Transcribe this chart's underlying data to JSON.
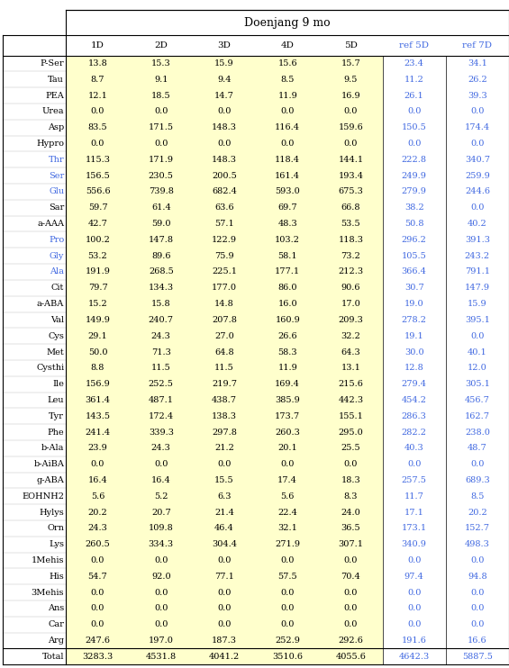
{
  "title": "Doenjang 9 mo",
  "columns": [
    "1D",
    "2D",
    "3D",
    "4D",
    "5D",
    "ref 5D",
    "ref 7D"
  ],
  "rows": [
    "P-Ser",
    "Tau",
    "PEA",
    "Urea",
    "Asp",
    "Hypro",
    "Thr",
    "Ser",
    "Glu",
    "Sar",
    "a-AAA",
    "Pro",
    "Gly",
    "Ala",
    "Cit",
    "a-ABA",
    "Val",
    "Cys",
    "Met",
    "Cysthi",
    "Ile",
    "Leu",
    "Tyr",
    "Phe",
    "b-Ala",
    "b-AiBA",
    "g-ABA",
    "EOHNH2",
    "Hylys",
    "Orn",
    "Lys",
    "1Mehis",
    "His",
    "3Mehis",
    "Ans",
    "Car",
    "Arg",
    "Total"
  ],
  "data": [
    [
      13.8,
      15.3,
      15.9,
      15.6,
      15.7,
      23.4,
      34.1
    ],
    [
      8.7,
      9.1,
      9.4,
      8.5,
      9.5,
      11.2,
      26.2
    ],
    [
      12.1,
      18.5,
      14.7,
      11.9,
      16.9,
      26.1,
      39.3
    ],
    [
      0.0,
      0.0,
      0.0,
      0.0,
      0.0,
      0.0,
      0.0
    ],
    [
      83.5,
      171.5,
      148.3,
      116.4,
      159.6,
      150.5,
      174.4
    ],
    [
      0.0,
      0.0,
      0.0,
      0.0,
      0.0,
      0.0,
      0.0
    ],
    [
      115.3,
      171.9,
      148.3,
      118.4,
      144.1,
      222.8,
      340.7
    ],
    [
      156.5,
      230.5,
      200.5,
      161.4,
      193.4,
      249.9,
      259.9
    ],
    [
      556.6,
      739.8,
      682.4,
      593.0,
      675.3,
      279.9,
      244.6
    ],
    [
      59.7,
      61.4,
      63.6,
      69.7,
      66.8,
      38.2,
      0.0
    ],
    [
      42.7,
      59.0,
      57.1,
      48.3,
      53.5,
      50.8,
      40.2
    ],
    [
      100.2,
      147.8,
      122.9,
      103.2,
      118.3,
      296.2,
      391.3
    ],
    [
      53.2,
      89.6,
      75.9,
      58.1,
      73.2,
      105.5,
      243.2
    ],
    [
      191.9,
      268.5,
      225.1,
      177.1,
      212.3,
      366.4,
      791.1
    ],
    [
      79.7,
      134.3,
      177.0,
      86.0,
      90.6,
      30.7,
      147.9
    ],
    [
      15.2,
      15.8,
      14.8,
      16.0,
      17.0,
      19.0,
      15.9
    ],
    [
      149.9,
      240.7,
      207.8,
      160.9,
      209.3,
      278.2,
      395.1
    ],
    [
      29.1,
      24.3,
      27.0,
      26.6,
      32.2,
      19.1,
      0.0
    ],
    [
      50.0,
      71.3,
      64.8,
      58.3,
      64.3,
      30.0,
      40.1
    ],
    [
      8.8,
      11.5,
      11.5,
      11.9,
      13.1,
      12.8,
      12.0
    ],
    [
      156.9,
      252.5,
      219.7,
      169.4,
      215.6,
      279.4,
      305.1
    ],
    [
      361.4,
      487.1,
      438.7,
      385.9,
      442.3,
      454.2,
      456.7
    ],
    [
      143.5,
      172.4,
      138.3,
      173.7,
      155.1,
      286.3,
      162.7
    ],
    [
      241.4,
      339.3,
      297.8,
      260.3,
      295.0,
      282.2,
      238.0
    ],
    [
      23.9,
      24.3,
      21.2,
      20.1,
      25.5,
      40.3,
      48.7
    ],
    [
      0.0,
      0.0,
      0.0,
      0.0,
      0.0,
      0.0,
      0.0
    ],
    [
      16.4,
      16.4,
      15.5,
      17.4,
      18.3,
      257.5,
      689.3
    ],
    [
      5.6,
      5.2,
      6.3,
      5.6,
      8.3,
      11.7,
      8.5
    ],
    [
      20.2,
      20.7,
      21.4,
      22.4,
      24.0,
      17.1,
      20.2
    ],
    [
      24.3,
      109.8,
      46.4,
      32.1,
      36.5,
      173.1,
      152.7
    ],
    [
      260.5,
      334.3,
      304.4,
      271.9,
      307.1,
      340.9,
      498.3
    ],
    [
      0.0,
      0.0,
      0.0,
      0.0,
      0.0,
      0.0,
      0.0
    ],
    [
      54.7,
      92.0,
      77.1,
      57.5,
      70.4,
      97.4,
      94.8
    ],
    [
      0.0,
      0.0,
      0.0,
      0.0,
      0.0,
      0.0,
      0.0
    ],
    [
      0.0,
      0.0,
      0.0,
      0.0,
      0.0,
      0.0,
      0.0
    ],
    [
      0.0,
      0.0,
      0.0,
      0.0,
      0.0,
      0.0,
      0.0
    ],
    [
      247.6,
      197.0,
      187.3,
      252.9,
      292.6,
      191.6,
      16.6
    ],
    [
      3283.3,
      4531.8,
      4041.2,
      3510.6,
      4055.6,
      4642.3,
      5887.5
    ]
  ],
  "blue_rows": [
    "Thr",
    "Ser",
    "Glu",
    "Pro",
    "Gly",
    "Ala"
  ],
  "blue_cols": [
    "ref 5D",
    "ref 7D"
  ],
  "yellow_bg_cols": [
    "1D",
    "2D",
    "3D",
    "4D",
    "5D"
  ],
  "cell_bg_yellow": "#ffffcc",
  "cell_bg_white": "#ffffff",
  "title_color": "#000000",
  "blue_text_color": "#4169e1",
  "black_text_color": "#000000"
}
